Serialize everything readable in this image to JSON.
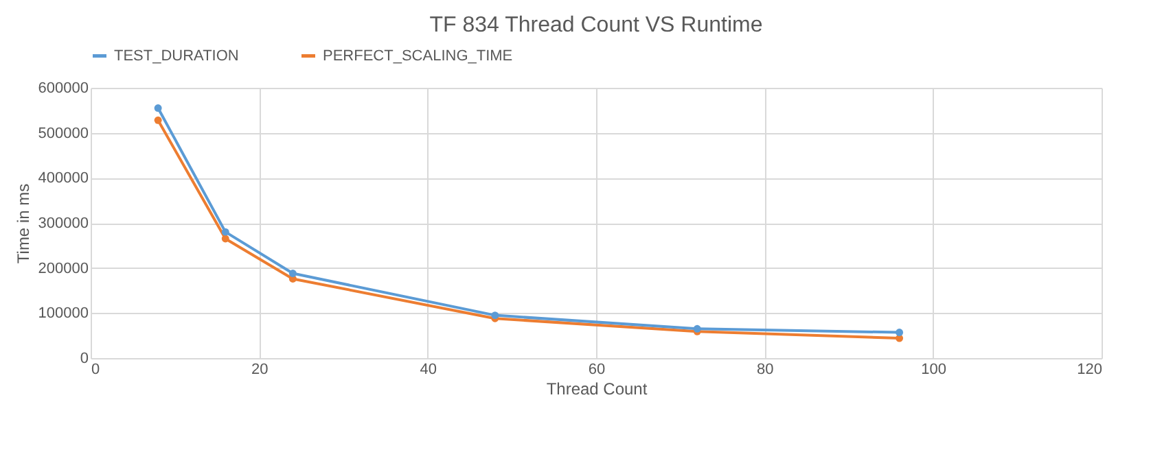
{
  "chart_data": {
    "type": "line",
    "title": "TF 834 Thread Count VS Runtime",
    "xlabel": "Thread Count",
    "ylabel": "Time in ms",
    "x": [
      8,
      16,
      24,
      48,
      72,
      96
    ],
    "series": [
      {
        "name": "TEST_DURATION",
        "color": "#5b9bd5",
        "values": [
          555000,
          280000,
          188000,
          95000,
          65000,
          57000
        ]
      },
      {
        "name": "PERFECT_SCALING_TIME",
        "color": "#ed7d31",
        "values": [
          528000,
          265000,
          176000,
          88000,
          59000,
          44000
        ]
      }
    ],
    "xlim": [
      0,
      120
    ],
    "xticks": [
      0,
      20,
      40,
      60,
      80,
      100,
      120
    ],
    "ylim": [
      0,
      600000
    ],
    "yticks": [
      0,
      100000,
      200000,
      300000,
      400000,
      500000,
      600000
    ],
    "grid": true,
    "legend": "top",
    "marker": "circle",
    "line_style": "solid"
  }
}
